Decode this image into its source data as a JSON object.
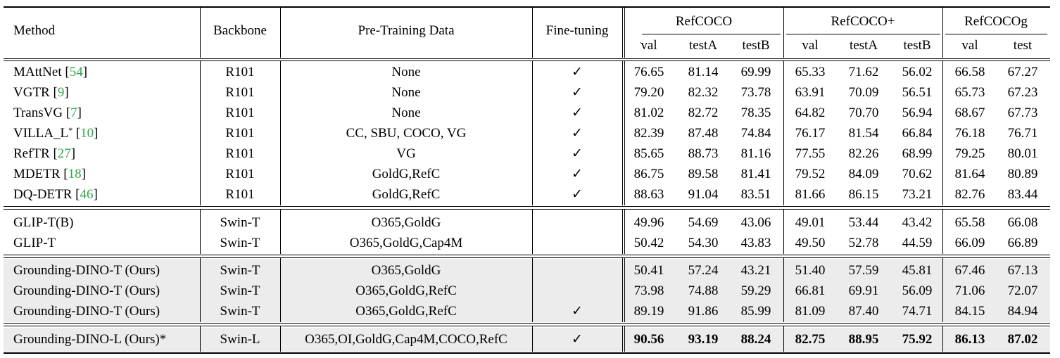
{
  "headers": {
    "method": "Method",
    "backbone": "Backbone",
    "pretraining": "Pre-Training Data",
    "finetuning": "Fine-tuning",
    "groups": [
      "RefCOCO",
      "RefCOCO+",
      "RefCOCOg"
    ],
    "subcols": [
      "val",
      "testA",
      "testB",
      "val",
      "testA",
      "testB",
      "val",
      "test"
    ]
  },
  "rows": [
    {
      "method": "MAttNet ",
      "cite": "54",
      "backbone": "R101",
      "data": "None",
      "ft": "✓",
      "scores": [
        "76.65",
        "81.14",
        "69.99",
        "65.33",
        "71.62",
        "56.02",
        "66.58",
        "67.27"
      ]
    },
    {
      "method": "VGTR ",
      "cite": "9",
      "backbone": "R101",
      "data": "None",
      "ft": "✓",
      "scores": [
        "79.20",
        "82.32",
        "73.78",
        "63.91",
        "70.09",
        "56.51",
        "65.73",
        "67.23"
      ]
    },
    {
      "method": "TransVG ",
      "cite": "7",
      "backbone": "R101",
      "data": "None",
      "ft": "✓",
      "scores": [
        "81.02",
        "82.72",
        "78.35",
        "64.82",
        "70.70",
        "56.94",
        "68.67",
        "67.73"
      ]
    },
    {
      "method": "VILLA_L",
      "sup": "*",
      "cite": "10",
      "backbone": "R101",
      "data": "CC, SBU, COCO, VG",
      "ft": "✓",
      "scores": [
        "82.39",
        "87.48",
        "74.84",
        "76.17",
        "81.54",
        "66.84",
        "76.18",
        "76.71"
      ]
    },
    {
      "method": "RefTR ",
      "cite": "27",
      "backbone": "R101",
      "data": "VG",
      "ft": "✓",
      "scores": [
        "85.65",
        "88.73",
        "81.16",
        "77.55",
        "82.26",
        "68.99",
        "79.25",
        "80.01"
      ]
    },
    {
      "method": "MDETR ",
      "cite": "18",
      "backbone": "R101",
      "data": "GoldG,RefC",
      "ft": "✓",
      "scores": [
        "86.75",
        "89.58",
        "81.41",
        "79.52",
        "84.09",
        "70.62",
        "81.64",
        "80.89"
      ]
    },
    {
      "method": "DQ-DETR ",
      "cite": "46",
      "backbone": "R101",
      "data": "GoldG,RefC",
      "ft": "✓",
      "scores": [
        "88.63",
        "91.04",
        "83.51",
        "81.66",
        "86.15",
        "73.21",
        "82.76",
        "83.44"
      ]
    },
    {
      "method": "GLIP-T(B)",
      "backbone": "Swin-T",
      "data": "O365,GoldG",
      "ft": "",
      "scores": [
        "49.96",
        "54.69",
        "43.06",
        "49.01",
        "53.44",
        "43.42",
        "65.58",
        "66.08"
      ]
    },
    {
      "method": "GLIP-T",
      "backbone": "Swin-T",
      "data": "O365,GoldG,Cap4M",
      "ft": "",
      "scores": [
        "50.42",
        "54.30",
        "43.83",
        "49.50",
        "52.78",
        "44.59",
        "66.09",
        "66.89"
      ]
    },
    {
      "method": "Grounding-DINO-T (Ours)",
      "backbone": "Swin-T",
      "data": "O365,GoldG",
      "ft": "",
      "scores": [
        "50.41",
        "57.24",
        "43.21",
        "51.40",
        "57.59",
        "45.81",
        "67.46",
        "67.13"
      ]
    },
    {
      "method": "Grounding-DINO-T (Ours)",
      "backbone": "Swin-T",
      "data": "O365,GoldG,RefC",
      "ft": "",
      "scores": [
        "73.98",
        "74.88",
        "59.29",
        "66.81",
        "69.91",
        "56.09",
        "71.06",
        "72.07"
      ]
    },
    {
      "method": "Grounding-DINO-T (Ours)",
      "backbone": "Swin-T",
      "data": "O365,GoldG,RefC",
      "ft": "✓",
      "scores": [
        "89.19",
        "91.86",
        "85.99",
        "81.09",
        "87.40",
        "74.71",
        "84.15",
        "84.94"
      ]
    },
    {
      "method": "Grounding-DINO-L (Ours)*",
      "backbone": "Swin-L",
      "data": "O365,OI,GoldG,Cap4M,COCO,RefC",
      "ft": "✓",
      "scores": [
        "90.56",
        "93.19",
        "88.24",
        "82.75",
        "88.95",
        "75.92",
        "86.13",
        "87.02"
      ],
      "bold_scores": true
    }
  ]
}
